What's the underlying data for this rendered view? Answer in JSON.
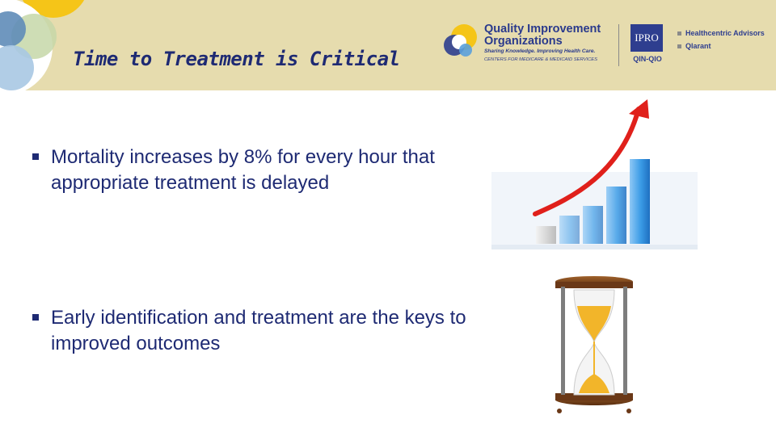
{
  "slide": {
    "title": "Time to Treatment is Critical",
    "bullets": [
      "Mortality increases by 8% for every hour that appropriate treatment is delayed",
      "Early identification and treatment are the keys to improved outcomes"
    ]
  },
  "logos": {
    "qio_name_line1": "Quality Improvement",
    "qio_name_line2": "Organizations",
    "qio_tagline": "Sharing Knowledge. Improving Health Care.",
    "qio_subtitle": "CENTERS FOR MEDICARE & MEDICAID SERVICES",
    "ipro": "IPRO",
    "ipro_sub": "QIN-QIO",
    "partner1": "Healthcentric Advisors",
    "partner2": "Qlarant"
  },
  "icons": {
    "chart": "rising-bar-chart-arrow-icon",
    "hourglass": "hourglass-icon"
  },
  "colors": {
    "header_bg": "#e6dcae",
    "text": "#1e2a73",
    "logo_blue": "#2e3e8f",
    "arrow_red": "#e0201b",
    "bar_blue": "#2f8fdf"
  }
}
